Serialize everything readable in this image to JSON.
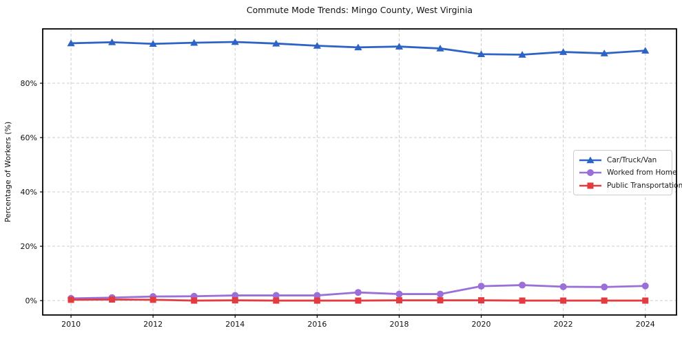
{
  "title": "Commute Mode Trends: Mingo County, West Virginia",
  "chart_data": {
    "type": "line",
    "title": "Commute Mode Trends: Mingo County, West Virginia",
    "xlabel": "",
    "ylabel": "Percentage of Workers (%)",
    "x": [
      2010,
      2011,
      2012,
      2013,
      2014,
      2015,
      2016,
      2017,
      2018,
      2019,
      2020,
      2021,
      2022,
      2023,
      2024
    ],
    "series": [
      {
        "name": "Car/Truck/Van",
        "color": "#2e63c6",
        "marker": "triangle",
        "values": [
          94.7,
          95.1,
          94.5,
          94.9,
          95.2,
          94.6,
          93.8,
          93.2,
          93.5,
          92.8,
          90.7,
          90.5,
          91.5,
          91.0,
          92.0
        ]
      },
      {
        "name": "Worked from Home",
        "color": "#9b6fd8",
        "marker": "circle",
        "values": [
          0.8,
          1.1,
          1.5,
          1.6,
          1.9,
          1.9,
          1.9,
          3.0,
          2.4,
          2.4,
          5.3,
          5.7,
          5.1,
          5.0,
          5.4
        ]
      },
      {
        "name": "Public Transportation",
        "color": "#e23b40",
        "marker": "square",
        "values": [
          0.3,
          0.4,
          0.3,
          0.0,
          0.1,
          0.0,
          0.0,
          0.0,
          0.1,
          0.1,
          0.1,
          0.0,
          0.0,
          0.0,
          0.0
        ]
      }
    ],
    "xticks": [
      2010,
      2012,
      2014,
      2016,
      2018,
      2020,
      2022,
      2024
    ],
    "yticks": [
      0,
      20,
      40,
      60,
      80
    ],
    "ytick_suffix": "%",
    "xlim": [
      2009.31,
      2024.76
    ],
    "ylim": [
      -5.3,
      100
    ],
    "grid": true,
    "grid_color": "#cccccc",
    "axis_color": "#000000",
    "text_color": "#111111",
    "legend_position": "right-middle"
  }
}
